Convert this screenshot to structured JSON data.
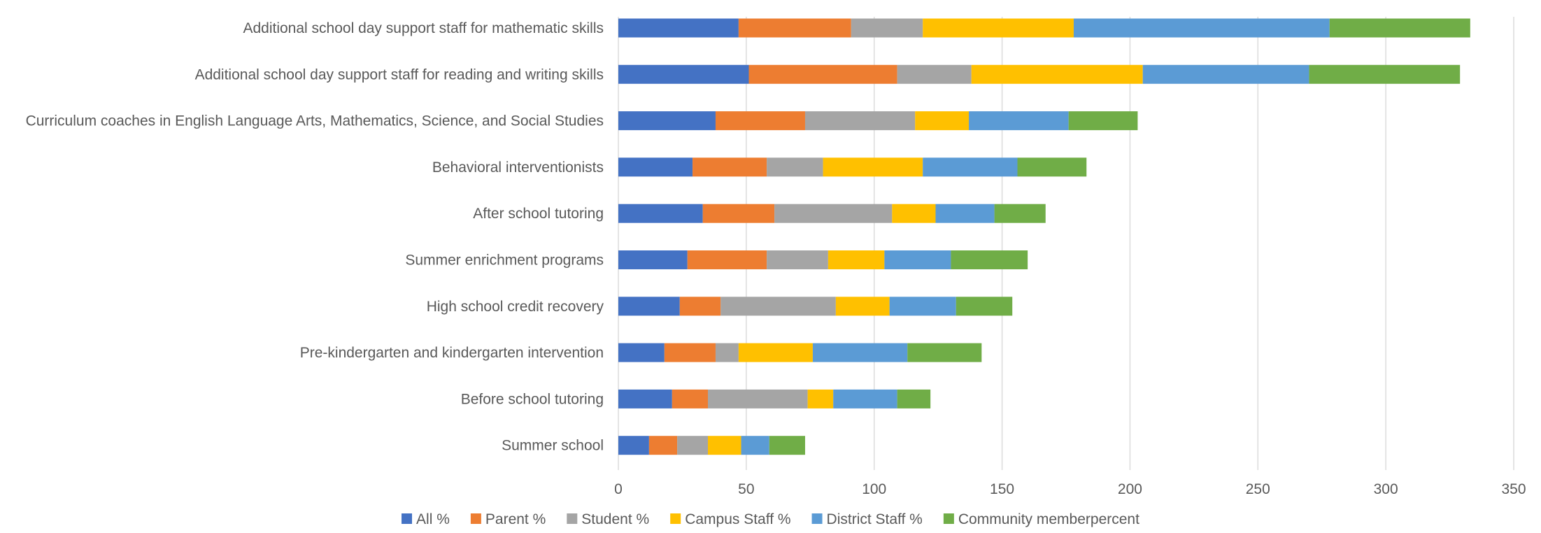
{
  "chart_data": {
    "type": "bar",
    "orientation": "horizontal",
    "stacked": true,
    "title": "",
    "xlabel": "",
    "ylabel": "",
    "xlim": [
      0,
      350
    ],
    "x_ticks": [
      0,
      50,
      100,
      150,
      200,
      250,
      300,
      350
    ],
    "grid": "vertical",
    "legend_position": "bottom",
    "categories": [
      "Additional school day support staff for mathematic skills",
      "Additional school day support staff for reading and writing skills",
      "Curriculum coaches in English Language Arts, Mathematics, Science, and Social Studies",
      "Behavioral interventionists",
      "After school tutoring",
      "Summer enrichment programs",
      "High school credit recovery",
      "Pre-kindergarten and kindergarten intervention",
      "Before school tutoring",
      "Summer school"
    ],
    "series": [
      {
        "name": "All %",
        "color": "#4472C4",
        "values": [
          47,
          51,
          38,
          29,
          33,
          27,
          24,
          18,
          21,
          12
        ]
      },
      {
        "name": "Parent %",
        "color": "#ED7D31",
        "values": [
          44,
          58,
          35,
          29,
          28,
          31,
          16,
          20,
          14,
          11
        ]
      },
      {
        "name": "Student %",
        "color": "#A5A5A5",
        "values": [
          28,
          29,
          43,
          22,
          46,
          24,
          45,
          9,
          39,
          12
        ]
      },
      {
        "name": "Campus Staff %",
        "color": "#FFC000",
        "values": [
          59,
          67,
          21,
          39,
          17,
          22,
          21,
          29,
          10,
          13
        ]
      },
      {
        "name": "District Staff %",
        "color": "#5B9BD5",
        "values": [
          100,
          65,
          39,
          37,
          23,
          26,
          26,
          37,
          25,
          11
        ]
      },
      {
        "name": "Community memberpercent",
        "color": "#70AD47",
        "values": [
          55,
          59,
          27,
          27,
          20,
          30,
          22,
          29,
          13,
          14
        ]
      }
    ]
  }
}
